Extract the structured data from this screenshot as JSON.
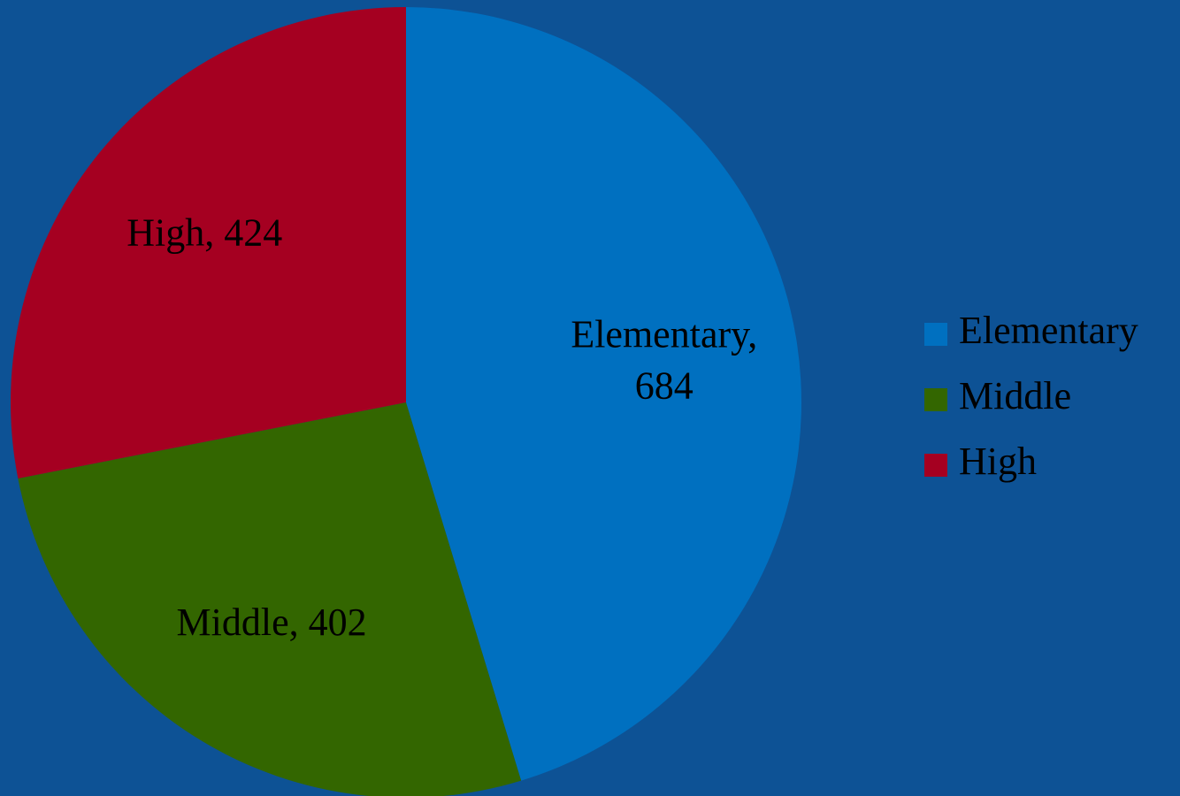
{
  "chart_data": {
    "type": "pie",
    "categories": [
      "Elementary",
      "Middle",
      "High"
    ],
    "values": [
      684,
      402,
      424
    ],
    "value_labels": [
      "Elementary, 684",
      "Middle, 402",
      "High, 424"
    ],
    "colors": [
      "#0070c0",
      "#336600",
      "#a50021"
    ],
    "legend": "right"
  }
}
